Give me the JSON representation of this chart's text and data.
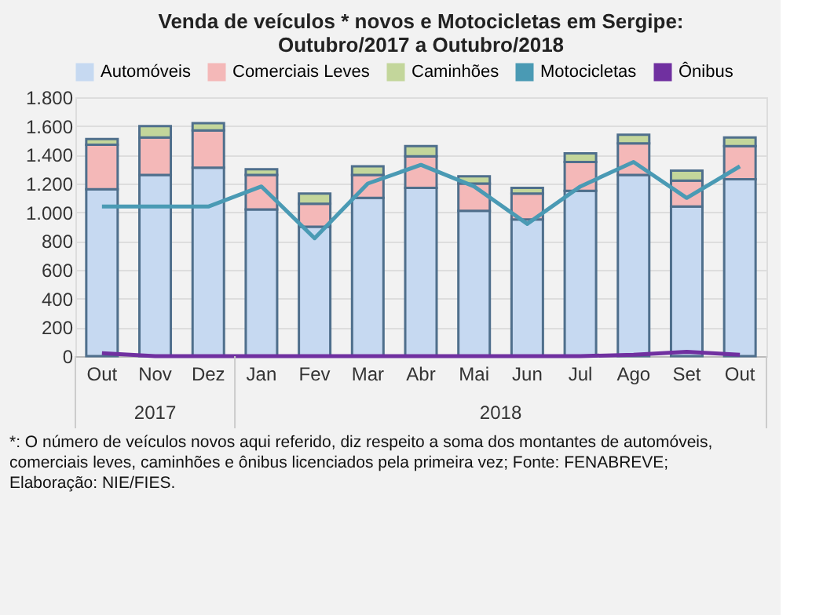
{
  "chart_data": {
    "type": "bar",
    "stacked": true,
    "title": [
      "Venda de veículos * novos e Motocicletas  em Sergipe:",
      "Outubro/2017  a Outubro/2018"
    ],
    "categories": [
      "Out",
      "Nov",
      "Dez",
      "Jan",
      "Fev",
      "Mar",
      "Abr",
      "Mai",
      "Jun",
      "Jul",
      "Ago",
      "Set",
      "Out"
    ],
    "series": [
      {
        "name": "Automóveis",
        "color": "#c6d9f1",
        "values": [
          1160,
          1260,
          1310,
          1020,
          900,
          1100,
          1170,
          1010,
          950,
          1150,
          1260,
          1040,
          1230
        ]
      },
      {
        "name": "Comerciais Leves",
        "color": "#f4b8b8",
        "values": [
          310,
          260,
          260,
          240,
          160,
          160,
          220,
          190,
          180,
          200,
          220,
          180,
          230
        ]
      },
      {
        "name": "Caminhões",
        "color": "#c3d69b",
        "values": [
          40,
          80,
          50,
          40,
          70,
          60,
          70,
          50,
          40,
          60,
          60,
          70,
          60
        ]
      },
      {
        "name": "Motocicletas",
        "type": "line",
        "color": "#4a9ab4",
        "values": [
          1040,
          1040,
          1040,
          1180,
          820,
          1200,
          1330,
          1180,
          920,
          1180,
          1350,
          1100,
          1320
        ]
      },
      {
        "name": "Ônibus",
        "type": "line",
        "color": "#7030a0",
        "values": [
          20,
          0,
          0,
          0,
          0,
          0,
          0,
          0,
          0,
          0,
          10,
          30,
          10
        ]
      }
    ],
    "ylim": [
      0,
      1800
    ],
    "yticks": [
      0,
      {
        "value": 200,
        "label": "200"
      },
      {
        "value": 400,
        "label": "400"
      },
      {
        "value": 600,
        "label": "600"
      },
      {
        "value": 800,
        "label": "800"
      },
      {
        "value": 1000,
        "label": "1.000"
      },
      {
        "value": 1200,
        "label": "1.200"
      },
      {
        "value": 1400,
        "label": "1.400"
      },
      {
        "value": 1600,
        "label": "1.600"
      },
      {
        "value": 1800,
        "label": "1.800"
      }
    ],
    "grid": "y",
    "legend": "top",
    "annotations": [
      "2017",
      "2018",
      "*: O número de veículos novos aqui referido, diz respeito a soma dos montantes de automóveis, comerciais leves, caminhões e ônibus licenciados pela primeira vez;  Fonte: FENABREVE;  Elaboração: NIE/FIES."
    ]
  }
}
